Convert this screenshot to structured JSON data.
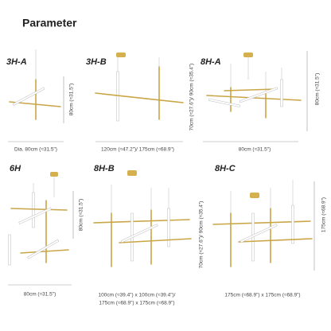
{
  "title": "Parameter",
  "products": [
    {
      "name": "3H-A",
      "height": "80cm (≈31.5\")",
      "width": [
        "Dia. 80cm (≈31.5\")"
      ]
    },
    {
      "name": "3H-B",
      "height": "70cm (≈27.6\")/ 90cm (≈35.4\")",
      "width": [
        "120cm (≈47.2\")/ 175cm (≈68.9\")"
      ]
    },
    {
      "name": "8H-A",
      "height": "80cm (≈31.5\")",
      "width": [
        "80cm (≈31.5\")"
      ]
    },
    {
      "name": "6H",
      "height": "80cm (≈31.5\")",
      "width": [
        "80cm (≈31.5\")"
      ]
    },
    {
      "name": "8H-B",
      "height": "70cm (≈27.6\")/ 90cm (≈35.4\")",
      "width": [
        "100cm (≈39.4\") x 100cm (≈39.4\")/",
        "175cm (≈68.9\") x 175cm (≈68.9\")"
      ]
    },
    {
      "name": "8H-C",
      "height": "175cm (≈68.9\")",
      "width": [
        "175cm (≈68.9\") x 175cm (≈68.9\")"
      ]
    }
  ]
}
